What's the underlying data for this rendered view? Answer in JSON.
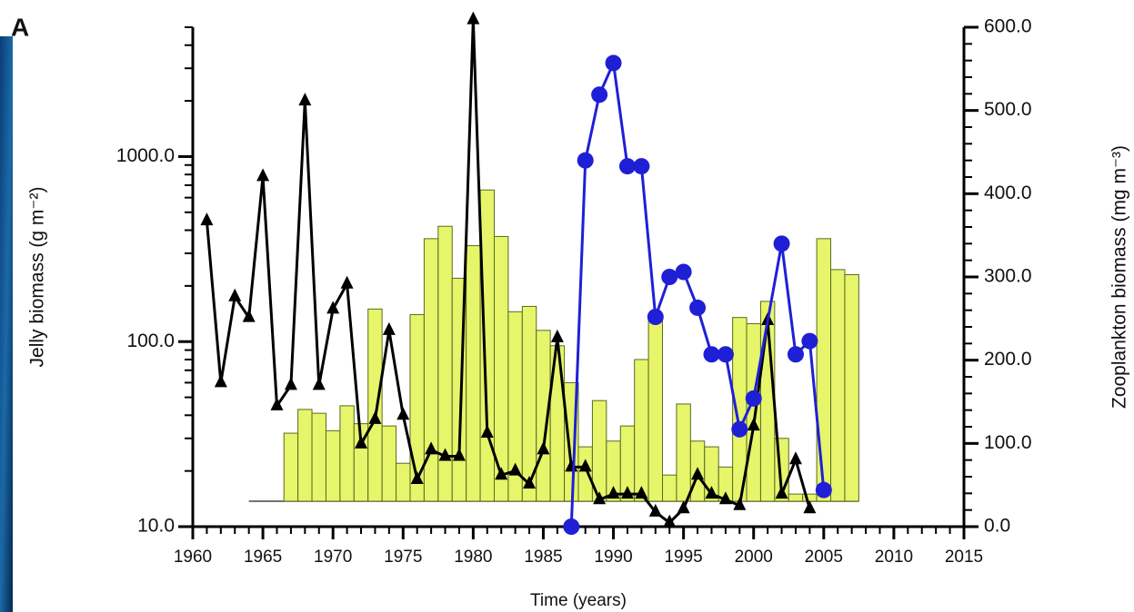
{
  "chart_data": {
    "type": "combo",
    "panel_label": "A",
    "x_label": "Time (years)",
    "y_label": "Jelly biomass (g m⁻²)",
    "y2_label": "Zooplankton biomass (mg m⁻³)",
    "xlim": [
      1960,
      2015
    ],
    "xticks": [
      1960,
      1965,
      1970,
      1975,
      1980,
      1985,
      1990,
      1995,
      2000,
      2005,
      2010,
      2015
    ],
    "ylim": [
      10,
      5000
    ],
    "log_y": true,
    "yticks": [
      {
        "value": 10,
        "label": "10.0"
      },
      {
        "value": 100,
        "label": "100.0"
      },
      {
        "value": 1000,
        "label": "1000.0"
      }
    ],
    "y2lim": [
      0,
      600
    ],
    "y2ticks": [
      {
        "value": 0,
        "label": "0.0"
      },
      {
        "value": 100,
        "label": "100.0"
      },
      {
        "value": 200,
        "label": "200.0"
      },
      {
        "value": 300,
        "label": "300.0"
      },
      {
        "value": 400,
        "label": "400.0"
      },
      {
        "value": 500,
        "label": "500.0"
      },
      {
        "value": 600,
        "label": "600.0"
      }
    ],
    "series": [
      {
        "type": "bar",
        "color": "#e6f56a",
        "x": [
          1967,
          1968,
          1969,
          1970,
          1971,
          1972,
          1973,
          1974,
          1975,
          1976,
          1977,
          1978,
          1979,
          1980,
          1981,
          1982,
          1983,
          1984,
          1985,
          1986,
          1987,
          1988,
          1989,
          1990,
          1991,
          1992,
          1993,
          1994,
          1995,
          1996,
          1997,
          1998,
          1999,
          2000,
          2001,
          2002,
          2003,
          2004,
          2005,
          2006,
          2007
        ],
        "values": [
          32,
          43,
          41,
          33,
          45,
          36,
          150,
          35,
          22,
          140,
          360,
          420,
          220,
          330,
          660,
          370,
          145,
          155,
          115,
          95,
          60,
          27,
          48,
          29,
          35,
          80,
          130,
          19,
          46,
          29,
          27,
          21,
          135,
          125,
          165,
          30,
          15,
          15,
          360,
          245,
          230
        ]
      },
      {
        "type": "line",
        "marker": "triangle",
        "color": "#000000",
        "x": [
          1961,
          1962,
          1963,
          1964,
          1965,
          1966,
          1967,
          1968,
          1969,
          1970,
          1971,
          1972,
          1973,
          1974,
          1975,
          1976,
          1977,
          1978,
          1979,
          1980,
          1981,
          1982,
          1983,
          1984,
          1985,
          1986,
          1987,
          1988,
          1989,
          1990,
          1991,
          1992,
          1993,
          1994,
          1995,
          1996,
          1997,
          1998,
          1999,
          2000,
          2001,
          2002,
          2003,
          2004
        ],
        "values": [
          450,
          60,
          175,
          135,
          780,
          45,
          58,
          2000,
          58,
          150,
          205,
          28,
          38,
          115,
          40,
          18,
          26,
          24,
          24,
          5500,
          32,
          19,
          20,
          17,
          26,
          105,
          21,
          21,
          14,
          15,
          15,
          15,
          12,
          10.5,
          12.5,
          19,
          15,
          14,
          13,
          35,
          130,
          15,
          23,
          12.5
        ]
      },
      {
        "type": "line",
        "marker": "circle",
        "color": "#1f1fd6",
        "axis": "y2",
        "x": [
          1987,
          1988,
          1989,
          1990,
          1991,
          1992,
          1993,
          1994,
          1995,
          1996,
          1997,
          1998,
          1999,
          2000,
          2002,
          2003,
          2004,
          2005
        ],
        "values": [
          0,
          440,
          519,
          557,
          433,
          433,
          252,
          300,
          306,
          263,
          207,
          207,
          117,
          154,
          340,
          207,
          223,
          44
        ]
      }
    ]
  }
}
